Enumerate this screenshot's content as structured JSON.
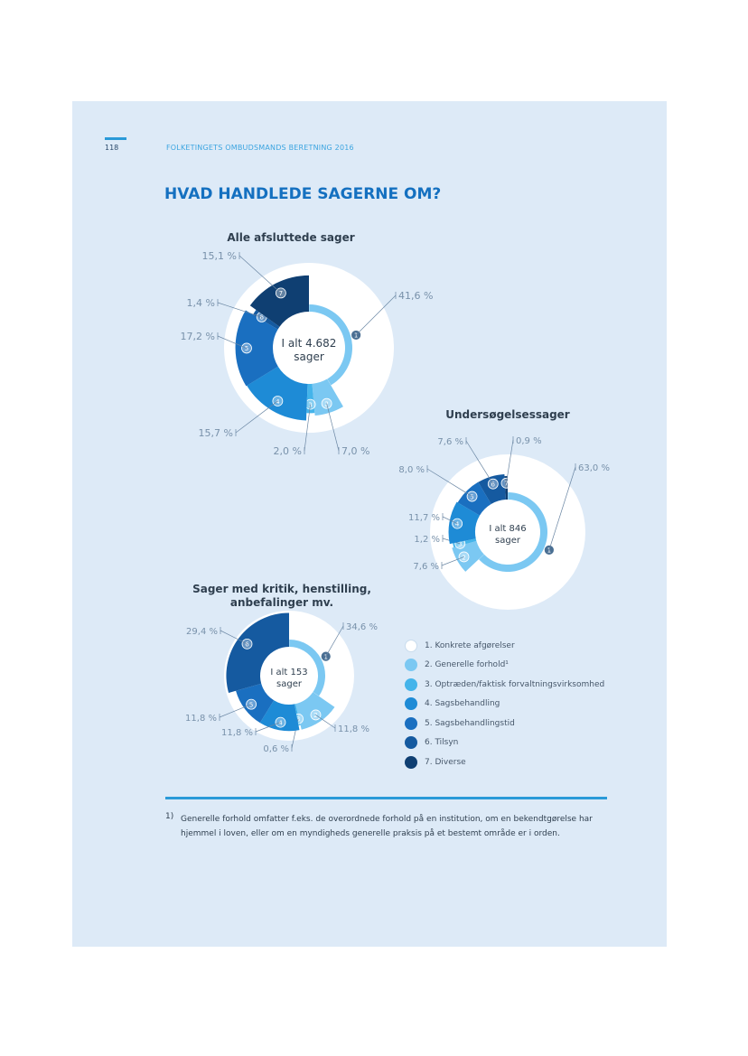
{
  "header": {
    "page_number": "118",
    "running_title": "FOLKETINGETS OMBUDSMANDS BERETNING 2016"
  },
  "title": "HVAD HANDLEDE SAGERNE OM?",
  "colors": [
    "#ffffff",
    "#7bc8f2",
    "#44b4ea",
    "#1e8bd6",
    "#1a6fc0",
    "#155aa0",
    "#0f3f72"
  ],
  "chart_data": [
    {
      "type": "donut",
      "title": "Alle afsluttede sager",
      "center_line1": "I alt 4.682",
      "center_line2": "sager",
      "categories": [
        "1",
        "2",
        "3",
        "4",
        "5",
        "6",
        "7"
      ],
      "values": [
        41.6,
        7.0,
        2.0,
        15.7,
        17.2,
        1.4,
        15.1
      ],
      "labels": [
        "41,6 %",
        "7,0 %",
        "2,0 %",
        "15,7 %",
        "17,2 %",
        "1,4 %",
        "15,1 %"
      ]
    },
    {
      "type": "donut",
      "title": "Undersøgelsessager",
      "center_line1": "I alt 846",
      "center_line2": "sager",
      "categories": [
        "1",
        "2",
        "3",
        "4",
        "5",
        "6",
        "7"
      ],
      "values": [
        63.0,
        7.6,
        1.2,
        11.7,
        8.0,
        7.6,
        0.9
      ],
      "labels": [
        "63,0 %",
        "7,6 %",
        "1,2 %",
        "11,7 %",
        "8,0 %",
        "7,6 %",
        "0,9 %"
      ]
    },
    {
      "type": "donut",
      "title_line1": "Sager med kritik, henstilling,",
      "title_line2": "anbefalinger mv.",
      "center_line1": "I alt 153",
      "center_line2": "sager",
      "categories": [
        "1",
        "2",
        "3",
        "4",
        "5",
        "6"
      ],
      "values": [
        34.6,
        11.8,
        0.6,
        11.8,
        11.8,
        29.4
      ],
      "labels": [
        "34,6 %",
        "11,8 %",
        "0,6 %",
        "11,8 %",
        "11,8 %",
        "29,4 %"
      ]
    }
  ],
  "legend": [
    "1. Konkrete afgørelser",
    "2. Generelle forhold¹",
    "3. Optræden/faktisk forvaltningsvirksomhed",
    "4. Sagsbehandling",
    "5. Sagsbehandlingstid",
    "6. Tilsyn",
    "7. Diverse"
  ],
  "footnote": {
    "number": "1)",
    "text": "Generelle forhold omfatter f.eks. de overordnede forhold på en institution, om en bekendtgørelse har hjemmel i loven, eller om en myndigheds generelle praksis på et bestemt område er i orden."
  }
}
